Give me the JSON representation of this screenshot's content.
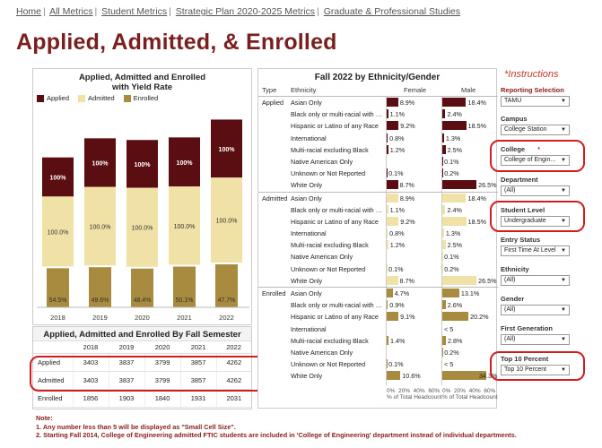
{
  "breadcrumb": [
    "Home",
    "All Metrics",
    "Student Metrics",
    "Strategic Plan 2020-2025 Metrics",
    "Graduate & Professional Studies"
  ],
  "page_title": "Applied, Admitted, & Enrolled",
  "chart_panel": {
    "title_line1": "Applied, Admitted and Enrolled",
    "title_line2": "with Yield Rate",
    "legend": [
      "Applied",
      "Admitted",
      "Enrolled"
    ]
  },
  "colors": {
    "applied": "#5a0e12",
    "admitted": "#f0e1a6",
    "enrolled": "#a98b3f",
    "accent": "#7a1f1f",
    "highlight": "#d11d1d"
  },
  "chart_data": {
    "type": "bar",
    "categories": [
      "2018",
      "2019",
      "2020",
      "2021",
      "2022"
    ],
    "series": [
      {
        "name": "Applied",
        "values": [
          3403,
          3837,
          3799,
          3857,
          4262
        ]
      },
      {
        "name": "Admitted",
        "values": [
          3403,
          3837,
          3799,
          3857,
          4262
        ]
      },
      {
        "name": "Enrolled",
        "values": [
          1856,
          1903,
          1840,
          1931,
          2031
        ]
      }
    ],
    "applied_labels": [
      "100%",
      "100%",
      "100%",
      "100%",
      "100%"
    ],
    "admitted_labels": [
      "100.0%",
      "100.0%",
      "100.0%",
      "100.0%",
      "100.0%"
    ],
    "yield_labels": [
      "54.5%",
      "49.6%",
      "48.4%",
      "50.1%",
      "47.7%"
    ]
  },
  "table": {
    "title": "Applied, Admitted and Enrolled By Fall Semester",
    "years": [
      "2018",
      "2019",
      "2020",
      "2021",
      "2022"
    ],
    "rows": [
      {
        "label": "Applied",
        "values": [
          "3403",
          "3837",
          "3799",
          "3857",
          "4262"
        ]
      },
      {
        "label": "Admitted",
        "values": [
          "3403",
          "3837",
          "3799",
          "3857",
          "4262"
        ]
      },
      {
        "label": "Enrolled",
        "values": [
          "1856",
          "1903",
          "1840",
          "1931",
          "2031"
        ]
      }
    ]
  },
  "eth": {
    "title": "Fall 2022 by Ethnicity/Gender",
    "col_type": "Type",
    "col_eth": "Ethnicity",
    "col_f": "Female",
    "col_m": "Male",
    "axis_ticks": [
      "0%",
      "20%",
      "40%",
      "60%"
    ],
    "axis_label": "% of Total Headcount",
    "groups": [
      {
        "type": "Applied",
        "rows": [
          {
            "eth": "Asian Only",
            "f": "8.9%",
            "fv": 8.9,
            "m": "18.4%",
            "mv": 18.4
          },
          {
            "eth": "Black only or multi-racial with Bl..",
            "f": "1.1%",
            "fv": 1.1,
            "m": "2.4%",
            "mv": 2.4
          },
          {
            "eth": "Hispanic or Latino of any Race",
            "f": "9.2%",
            "fv": 9.2,
            "m": "18.5%",
            "mv": 18.5
          },
          {
            "eth": "International",
            "f": "0.8%",
            "fv": 0.8,
            "m": "1.3%",
            "mv": 1.3
          },
          {
            "eth": "Multi-racial excluding Black",
            "f": "1.2%",
            "fv": 1.2,
            "m": "2.5%",
            "mv": 2.5
          },
          {
            "eth": "Native American Only",
            "f": "",
            "fv": 0,
            "m": "0.1%",
            "mv": 0.1
          },
          {
            "eth": "Unknown or Not Reported",
            "f": "0.1%",
            "fv": 0.1,
            "m": "0.2%",
            "mv": 0.2
          },
          {
            "eth": "White Only",
            "f": "8.7%",
            "fv": 8.7,
            "m": "26.5%",
            "mv": 26.5
          }
        ]
      },
      {
        "type": "Admitted",
        "rows": [
          {
            "eth": "Asian Only",
            "f": "8.9%",
            "fv": 8.9,
            "m": "18.4%",
            "mv": 18.4
          },
          {
            "eth": "Black only or multi-racial with Bl..",
            "f": "1.1%",
            "fv": 1.1,
            "m": "2.4%",
            "mv": 2.4
          },
          {
            "eth": "Hispanic or Latino of any Race",
            "f": "9.2%",
            "fv": 9.2,
            "m": "18.5%",
            "mv": 18.5
          },
          {
            "eth": "International",
            "f": "0.8%",
            "fv": 0.8,
            "m": "1.3%",
            "mv": 1.3
          },
          {
            "eth": "Multi-racial excluding Black",
            "f": "1.2%",
            "fv": 1.2,
            "m": "2.5%",
            "mv": 2.5
          },
          {
            "eth": "Native American Only",
            "f": "",
            "fv": 0,
            "m": "0.1%",
            "mv": 0.1
          },
          {
            "eth": "Unknown or Not Reported",
            "f": "0.1%",
            "fv": 0.1,
            "m": "0.2%",
            "mv": 0.2
          },
          {
            "eth": "White Only",
            "f": "8.7%",
            "fv": 8.7,
            "m": "26.5%",
            "mv": 26.5
          }
        ]
      },
      {
        "type": "Enrolled",
        "rows": [
          {
            "eth": "Asian Only",
            "f": "4.7%",
            "fv": 4.7,
            "m": "13.1%",
            "mv": 13.1
          },
          {
            "eth": "Black only or multi-racial with Bl..",
            "f": "0.9%",
            "fv": 0.9,
            "m": "2.6%",
            "mv": 2.6
          },
          {
            "eth": "Hispanic or Latino of any Race",
            "f": "9.1%",
            "fv": 9.1,
            "m": "20.2%",
            "mv": 20.2
          },
          {
            "eth": "International",
            "f": "",
            "fv": 0,
            "m": "< 5",
            "mv": 0
          },
          {
            "eth": "Multi-racial excluding Black",
            "f": "1.4%",
            "fv": 1.4,
            "m": "2.8%",
            "mv": 2.8
          },
          {
            "eth": "Native American Only",
            "f": "",
            "fv": 0,
            "m": "0.2%",
            "mv": 0.2
          },
          {
            "eth": "Unknown or Not Reported",
            "f": "0.1%",
            "fv": 0.1,
            "m": "< 5",
            "mv": 0
          },
          {
            "eth": "White Only",
            "f": "10.6%",
            "fv": 10.6,
            "m": "34.3%",
            "mv": 34.3
          }
        ]
      }
    ]
  },
  "filters": {
    "instructions": "*Instructions",
    "reporting_selection": {
      "label": "Reporting Selection",
      "value": "TAMU"
    },
    "campus": {
      "label": "Campus",
      "value": "College Station"
    },
    "college": {
      "label": "College",
      "star": "*",
      "value": "College of Engin..."
    },
    "department": {
      "label": "Department",
      "value": "(All)"
    },
    "student_level": {
      "label": "Student Level",
      "value": "Undergraduate"
    },
    "entry_status": {
      "label": "Entry Status",
      "value": "First Time At Level"
    },
    "ethnicity": {
      "label": "Ethnicity",
      "value": "(All)"
    },
    "gender": {
      "label": "Gender",
      "value": "(All)"
    },
    "first_generation": {
      "label": "First Generation",
      "value": "(All)"
    },
    "top10": {
      "label": "Top 10 Percent",
      "value": "Top 10 Percent"
    }
  },
  "notes": {
    "head": "Note:",
    "n1": "1. Any number less than 5 will be displayed as \"Small Cell Size\".",
    "n2": "2. Starting Fall 2014, College of Engineering admitted FTIC students are included in 'College of Engineering' department instead of individual departments."
  }
}
